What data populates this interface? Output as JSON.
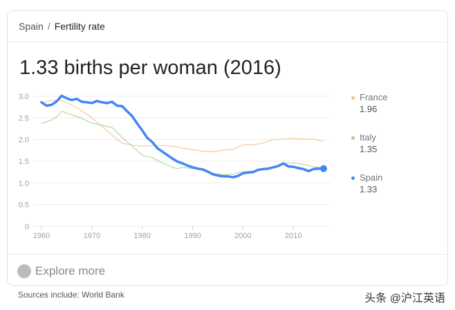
{
  "breadcrumb": {
    "parent": "Spain",
    "separator": "/",
    "current": "Fertility rate"
  },
  "headline": "1.33 births per woman (2016)",
  "explore_label": "Explore more",
  "sources": "Sources include: World Bank",
  "watermark": "头条 @沪江英语",
  "chart_data": {
    "type": "line",
    "title": "",
    "xlabel": "",
    "ylabel": "",
    "xlim": [
      1960,
      2016
    ],
    "ylim": [
      0,
      3.0
    ],
    "x_ticks": [
      "1960",
      "1970",
      "1980",
      "1990",
      "2000",
      "2010"
    ],
    "y_ticks": [
      "0",
      "0.5",
      "1.0",
      "1.5",
      "2.0",
      "2.5",
      "3.0"
    ],
    "grid": true,
    "legend": "right",
    "series": [
      {
        "name": "France",
        "latest": "1.96",
        "color": "#f6be8a",
        "width": 1,
        "x": [
          1960,
          1962,
          1964,
          1966,
          1968,
          1970,
          1972,
          1974,
          1976,
          1978,
          1980,
          1982,
          1984,
          1986,
          1988,
          1990,
          1992,
          1994,
          1996,
          1998,
          2000,
          2002,
          2004,
          2006,
          2008,
          2010,
          2012,
          2014,
          2016
        ],
        "y": [
          2.85,
          2.9,
          2.9,
          2.8,
          2.66,
          2.5,
          2.3,
          2.1,
          1.92,
          1.87,
          1.85,
          1.86,
          1.86,
          1.85,
          1.8,
          1.77,
          1.73,
          1.72,
          1.75,
          1.78,
          1.88,
          1.88,
          1.92,
          2.0,
          2.01,
          2.03,
          2.01,
          2.01,
          1.96
        ]
      },
      {
        "name": "Italy",
        "latest": "1.35",
        "color": "#a8d08d",
        "width": 1,
        "x": [
          1960,
          1962,
          1963,
          1964,
          1966,
          1968,
          1970,
          1972,
          1974,
          1976,
          1978,
          1980,
          1982,
          1984,
          1986,
          1987,
          1988,
          1990,
          1992,
          1994,
          1996,
          1998,
          2000,
          2002,
          2004,
          2006,
          2008,
          2010,
          2012,
          2014,
          2016
        ],
        "y": [
          2.37,
          2.45,
          2.52,
          2.65,
          2.57,
          2.49,
          2.38,
          2.33,
          2.28,
          2.05,
          1.85,
          1.64,
          1.58,
          1.46,
          1.36,
          1.33,
          1.36,
          1.33,
          1.31,
          1.22,
          1.19,
          1.2,
          1.26,
          1.27,
          1.33,
          1.37,
          1.45,
          1.46,
          1.43,
          1.37,
          1.35
        ]
      },
      {
        "name": "Spain",
        "latest": "1.33",
        "color": "#4285f4",
        "width": 3.5,
        "x": [
          1960,
          1961,
          1962,
          1963,
          1964,
          1965,
          1966,
          1967,
          1968,
          1969,
          1970,
          1971,
          1972,
          1973,
          1974,
          1975,
          1976,
          1977,
          1978,
          1979,
          1980,
          1981,
          1982,
          1983,
          1984,
          1985,
          1986,
          1987,
          1988,
          1989,
          1990,
          1991,
          1992,
          1993,
          1994,
          1995,
          1996,
          1997,
          1998,
          1999,
          2000,
          2001,
          2002,
          2003,
          2004,
          2005,
          2006,
          2007,
          2008,
          2009,
          2010,
          2011,
          2012,
          2013,
          2014,
          2015,
          2016
        ],
        "y": [
          2.86,
          2.78,
          2.8,
          2.88,
          3.01,
          2.95,
          2.91,
          2.94,
          2.87,
          2.86,
          2.84,
          2.89,
          2.86,
          2.84,
          2.87,
          2.78,
          2.77,
          2.65,
          2.54,
          2.37,
          2.21,
          2.04,
          1.94,
          1.8,
          1.72,
          1.64,
          1.56,
          1.49,
          1.45,
          1.4,
          1.36,
          1.33,
          1.31,
          1.26,
          1.2,
          1.17,
          1.15,
          1.15,
          1.13,
          1.16,
          1.22,
          1.24,
          1.25,
          1.3,
          1.32,
          1.33,
          1.36,
          1.39,
          1.45,
          1.38,
          1.37,
          1.34,
          1.32,
          1.27,
          1.32,
          1.33,
          1.33
        ]
      }
    ]
  }
}
